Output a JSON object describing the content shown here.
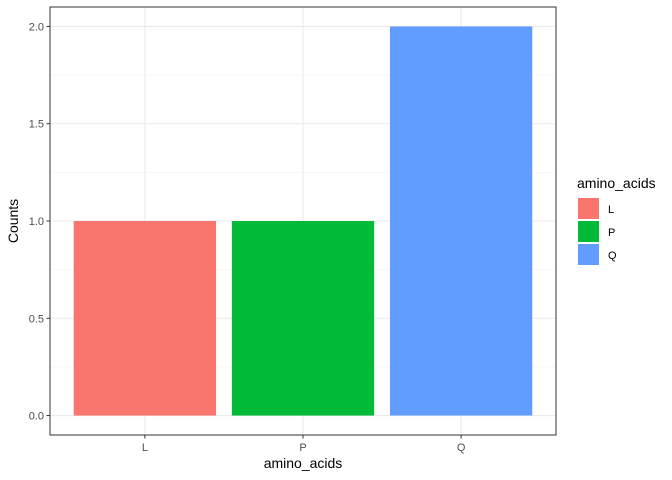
{
  "chart_data": {
    "type": "bar",
    "categories": [
      "L",
      "P",
      "Q"
    ],
    "values": [
      1,
      1,
      2
    ],
    "colors": [
      "#F8766D",
      "#00BA38",
      "#619CFF"
    ],
    "xlabel": "amino_acids",
    "ylabel": "Counts",
    "ylim": [
      -0.1,
      2.1
    ],
    "yticks": [
      0.0,
      0.5,
      1.0,
      1.5,
      2.0
    ],
    "ytick_labels": [
      "0.0",
      "0.5",
      "1.0",
      "1.5",
      "2.0"
    ],
    "grid": true,
    "theme": "bw",
    "legend": {
      "title": "amino_acids",
      "position": "right",
      "items": [
        "L",
        "P",
        "Q"
      ]
    }
  }
}
